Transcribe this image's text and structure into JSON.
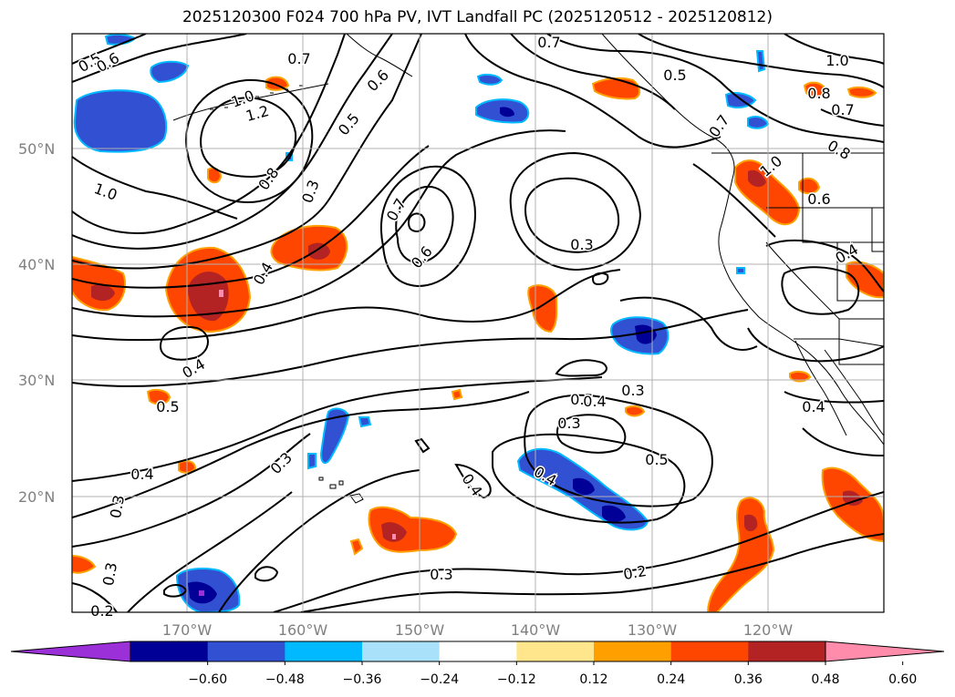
{
  "title": "2025120300 F024 700 hPa PV, IVT Landfall PC (2025120512 - 2025120812)",
  "map": {
    "lat_labels": [
      "50°N",
      "40°N",
      "30°N",
      "20°N"
    ],
    "lon_labels": [
      "170°W",
      "160°W",
      "150°W",
      "140°W",
      "130°W",
      "120°W"
    ],
    "contour_labels": [
      {
        "t": "0.5"
      },
      {
        "t": "0.6"
      },
      {
        "t": "0.7"
      },
      {
        "t": "0.7"
      },
      {
        "t": "0.5"
      },
      {
        "t": "1.0"
      },
      {
        "t": "0.8"
      },
      {
        "t": "0.7"
      },
      {
        "t": "0.8"
      },
      {
        "t": "1.0"
      },
      {
        "t": "1.2"
      },
      {
        "t": "0.6"
      },
      {
        "t": "0.5"
      },
      {
        "t": "0.8"
      },
      {
        "t": "0.3"
      },
      {
        "t": "0.7"
      },
      {
        "t": "1.0"
      },
      {
        "t": "0.7"
      },
      {
        "t": "1.0"
      },
      {
        "t": "0.6"
      },
      {
        "t": "0.3"
      },
      {
        "t": "0.4"
      },
      {
        "t": "0.4"
      },
      {
        "t": "0.6"
      },
      {
        "t": "0.4"
      },
      {
        "t": "0.5"
      },
      {
        "t": "0.3"
      },
      {
        "t": "0.4"
      },
      {
        "t": "0.3"
      },
      {
        "t": "0.4"
      },
      {
        "t": "0.5"
      },
      {
        "t": "0.3"
      },
      {
        "t": "0.4"
      },
      {
        "t": "0.5"
      },
      {
        "t": "0.4"
      },
      {
        "t": "0.3"
      },
      {
        "t": "0.2"
      },
      {
        "t": "0.3"
      },
      {
        "t": "0.2"
      },
      {
        "t": "0.3"
      },
      {
        "t": "0.4"
      }
    ]
  },
  "colorbar": {
    "colors": [
      "#9b30d9",
      "#000096",
      "#3250d2",
      "#00b9ff",
      "#aae1fa",
      "#ffffff",
      "#ffe68c",
      "#ffa000",
      "#ff4600",
      "#b42323",
      "#ff8caa"
    ],
    "tick_labels": [
      "−0.60",
      "−0.48",
      "−0.36",
      "−0.24",
      "−0.12",
      "0.12",
      "0.24",
      "0.36",
      "0.48",
      "0.60"
    ]
  }
}
